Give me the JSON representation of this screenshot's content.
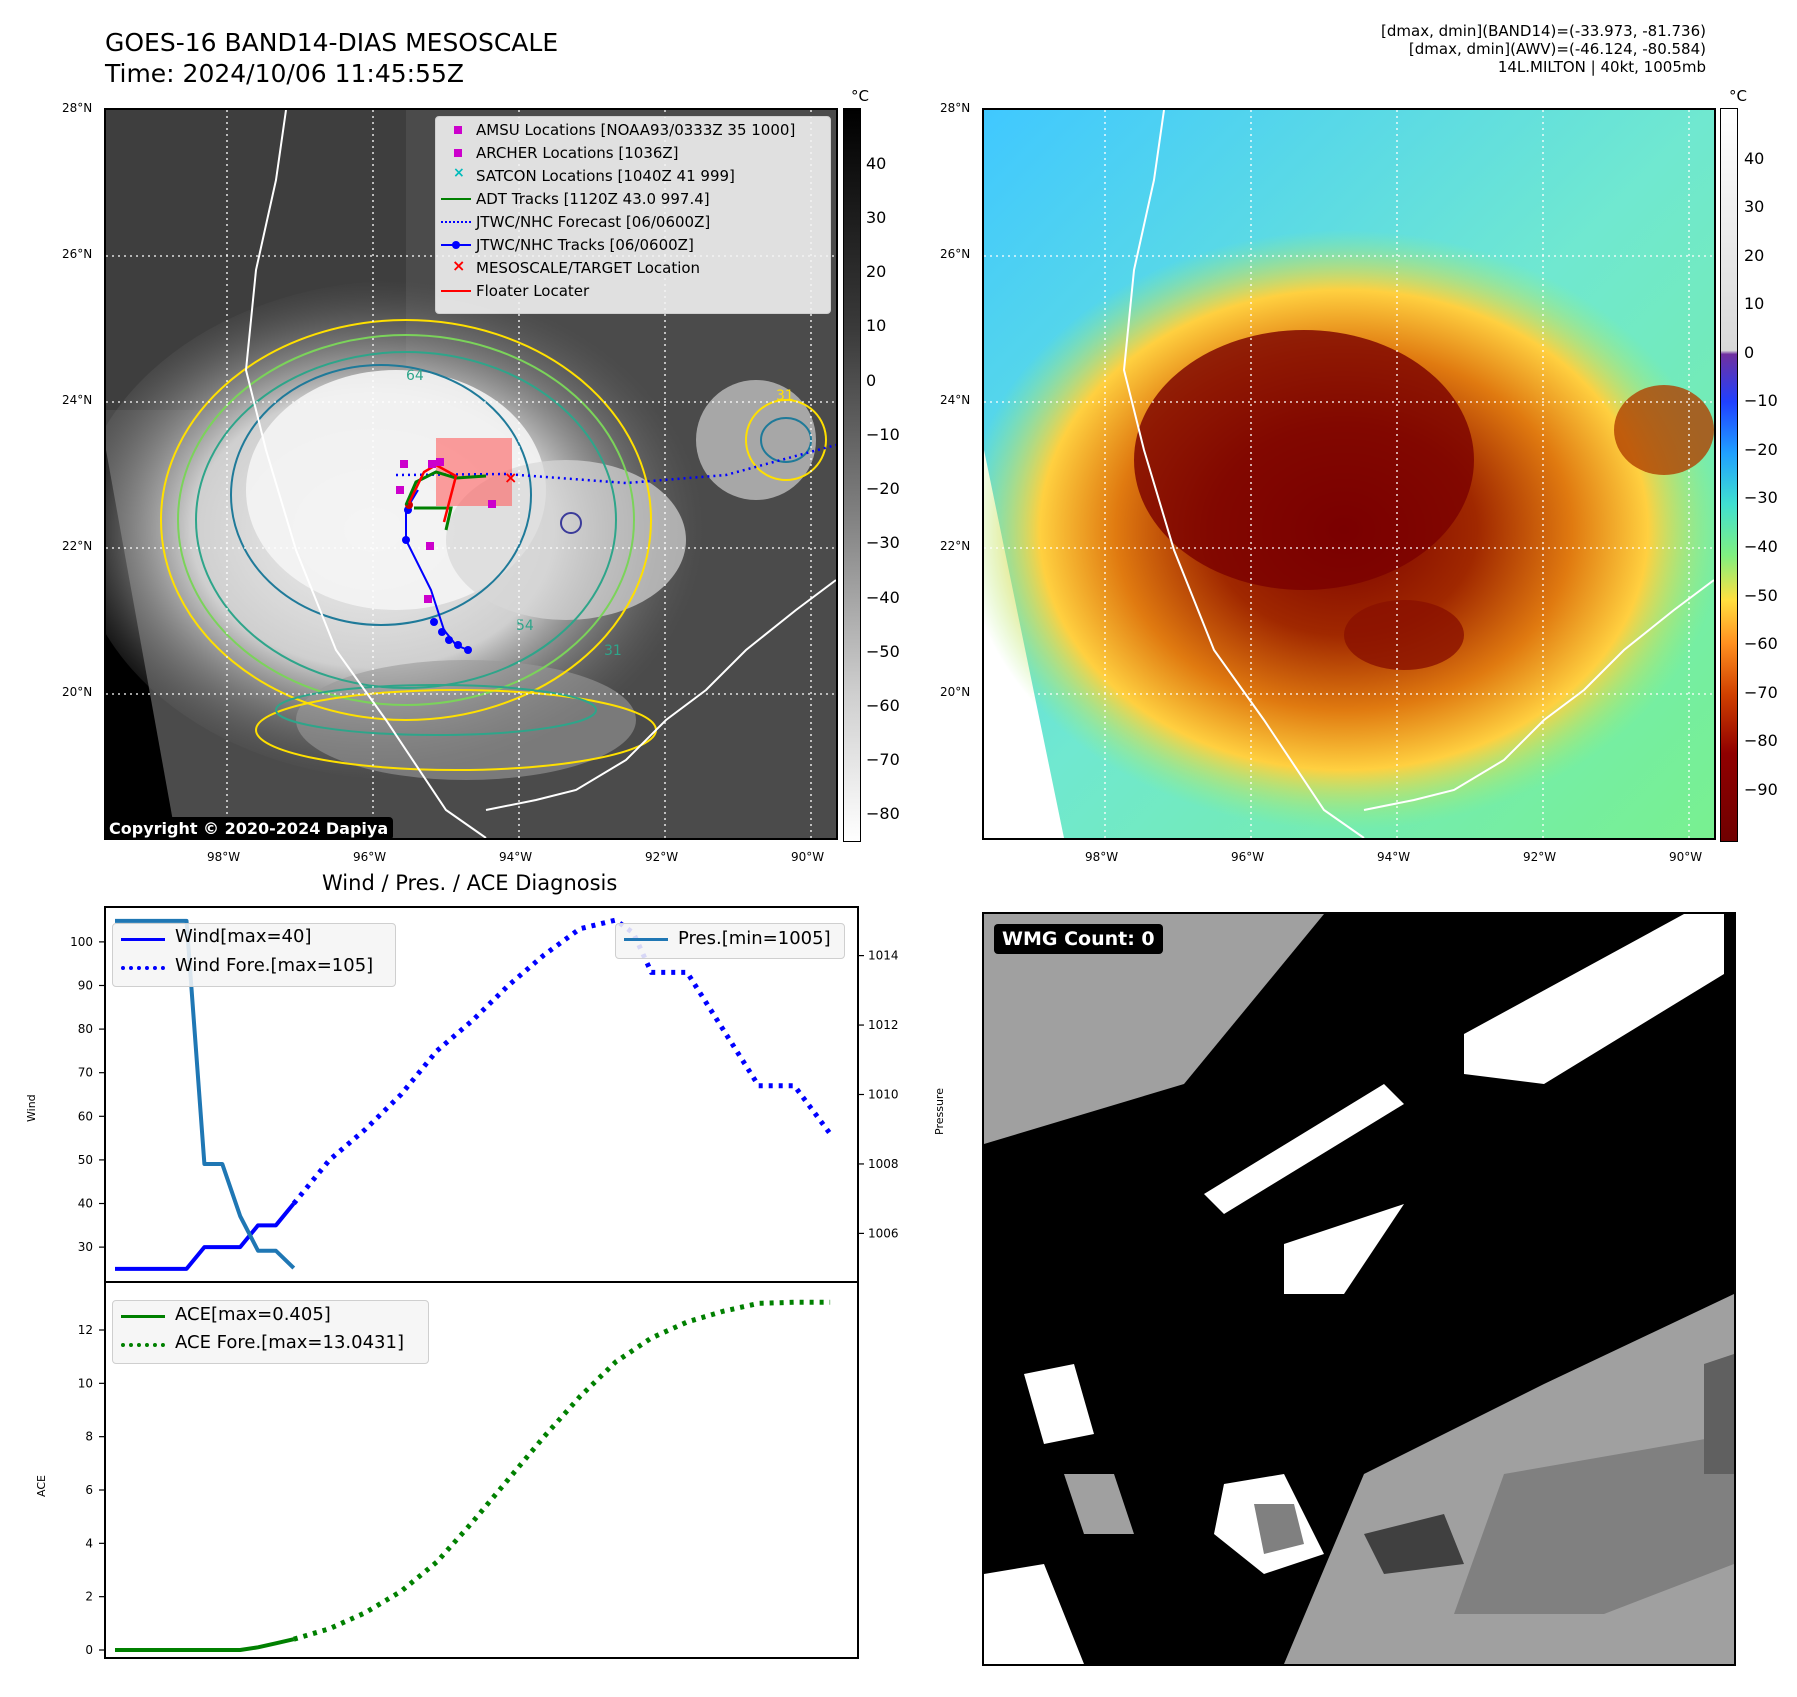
{
  "header": {
    "title_line1": "GOES-16 BAND14-DIAS MESOSCALE",
    "title_line2": "Time: 2024/10/06 11:45:55Z",
    "info_line1": "[dmax, dmin](BAND14)=(-33.973, -81.736)",
    "info_line2": "[dmax, dmin](AWV)=(-46.124, -80.584)",
    "info_line3": "14L.MILTON | 40kt, 1005mb"
  },
  "map": {
    "lat_labels": [
      "28°N",
      "26°N",
      "24°N",
      "22°N",
      "20°N"
    ],
    "lon_labels": [
      "98°W",
      "96°W",
      "94°W",
      "92°W",
      "90°W"
    ],
    "copyright": "Copyright © 2020-2024 Dapiya",
    "contour_labels": [
      "64",
      "31",
      "54",
      "31"
    ],
    "legend": [
      "AMSU Locations [NOAA93/0333Z 35 1000]",
      "ARCHER Locations [1036Z]",
      "SATCON Locations [1040Z 41 999]",
      "ADT Tracks [1120Z 43.0 997.4]",
      "JTWC/NHC Forecast [06/0600Z]",
      "JTWC/NHC Tracks [06/0600Z]",
      "MESOSCALE/TARGET Location",
      "Floater Locater"
    ],
    "colorbar_unit": "°C",
    "colorbar_ticks_gray": [
      "40",
      "30",
      "20",
      "10",
      "0",
      "−10",
      "−20",
      "−30",
      "−40",
      "−50",
      "−60",
      "−70",
      "−80"
    ],
    "colorbar_ticks_awv": [
      "40",
      "30",
      "20",
      "10",
      "0",
      "−10",
      "−20",
      "−30",
      "−40",
      "−50",
      "−60",
      "−70",
      "−80",
      "−90"
    ]
  },
  "diagnosis": {
    "title": "Wind / Pres. / ACE Diagnosis",
    "wind_ylabel": "Wind",
    "pressure_ylabel": "Pressure",
    "ace_ylabel": "ACE",
    "legend_wind": "Wind[max=40]",
    "legend_wind_fore": "Wind Fore.[max=105]",
    "legend_pres": "Pres.[min=1005]",
    "legend_ace": "ACE[max=0.405]",
    "legend_ace_fore": "ACE Fore.[max=13.0431]",
    "wmg_label": "WMG Count: 0"
  },
  "chart_data": [
    {
      "type": "line",
      "title": "Wind / Pres. / ACE Diagnosis",
      "ylabel": "Wind",
      "ylim": [
        22,
        108
      ],
      "yticks": [
        30,
        40,
        50,
        60,
        70,
        80,
        90,
        100
      ],
      "series": [
        {
          "name": "Wind[max=40]",
          "color": "#0000ff",
          "style": "solid",
          "x": [
            0,
            2,
            3,
            4,
            5,
            6,
            7,
            8,
            9,
            10
          ],
          "values": [
            25,
            25,
            25,
            25,
            30,
            30,
            30,
            35,
            35,
            40
          ]
        },
        {
          "name": "Wind Fore.[max=105]",
          "color": "#0000ff",
          "style": "dotted",
          "x": [
            10,
            12,
            14,
            16,
            18,
            20,
            22,
            24,
            26,
            28,
            29,
            30,
            32,
            34,
            36,
            38,
            40
          ],
          "values": [
            40,
            50,
            57,
            65,
            75,
            82,
            90,
            97,
            103,
            105,
            102,
            93,
            93,
            80,
            67,
            67,
            56
          ]
        }
      ]
    },
    {
      "type": "line",
      "ylabel": "Pressure",
      "ylim": [
        1004.6,
        1015.4
      ],
      "yticks": [
        1006,
        1008,
        1010,
        1012,
        1014
      ],
      "series": [
        {
          "name": "Pres.[min=1005]",
          "color": "#1f77b4",
          "style": "solid",
          "x": [
            0,
            3,
            4,
            5,
            6,
            7,
            8,
            9,
            10
          ],
          "values": [
            1015,
            1015,
            1015,
            1008,
            1008,
            1006.5,
            1005.5,
            1005.5,
            1005
          ]
        }
      ]
    },
    {
      "type": "line",
      "ylabel": "ACE",
      "ylim": [
        -0.3,
        13.8
      ],
      "yticks": [
        0,
        2,
        4,
        6,
        8,
        10,
        12
      ],
      "series": [
        {
          "name": "ACE[max=0.405]",
          "color": "#008000",
          "style": "solid",
          "x": [
            0,
            4,
            7,
            8,
            9,
            10
          ],
          "values": [
            0,
            0,
            0,
            0.1,
            0.25,
            0.405
          ]
        },
        {
          "name": "ACE Fore.[max=13.0431]",
          "color": "#008000",
          "style": "dotted",
          "x": [
            10,
            12,
            14,
            16,
            18,
            20,
            22,
            24,
            26,
            28,
            30,
            32,
            34,
            36,
            38,
            40
          ],
          "values": [
            0.405,
            0.8,
            1.4,
            2.2,
            3.3,
            4.8,
            6.4,
            8.0,
            9.5,
            10.8,
            11.7,
            12.3,
            12.7,
            13.0,
            13.04,
            13.04
          ]
        }
      ]
    }
  ]
}
